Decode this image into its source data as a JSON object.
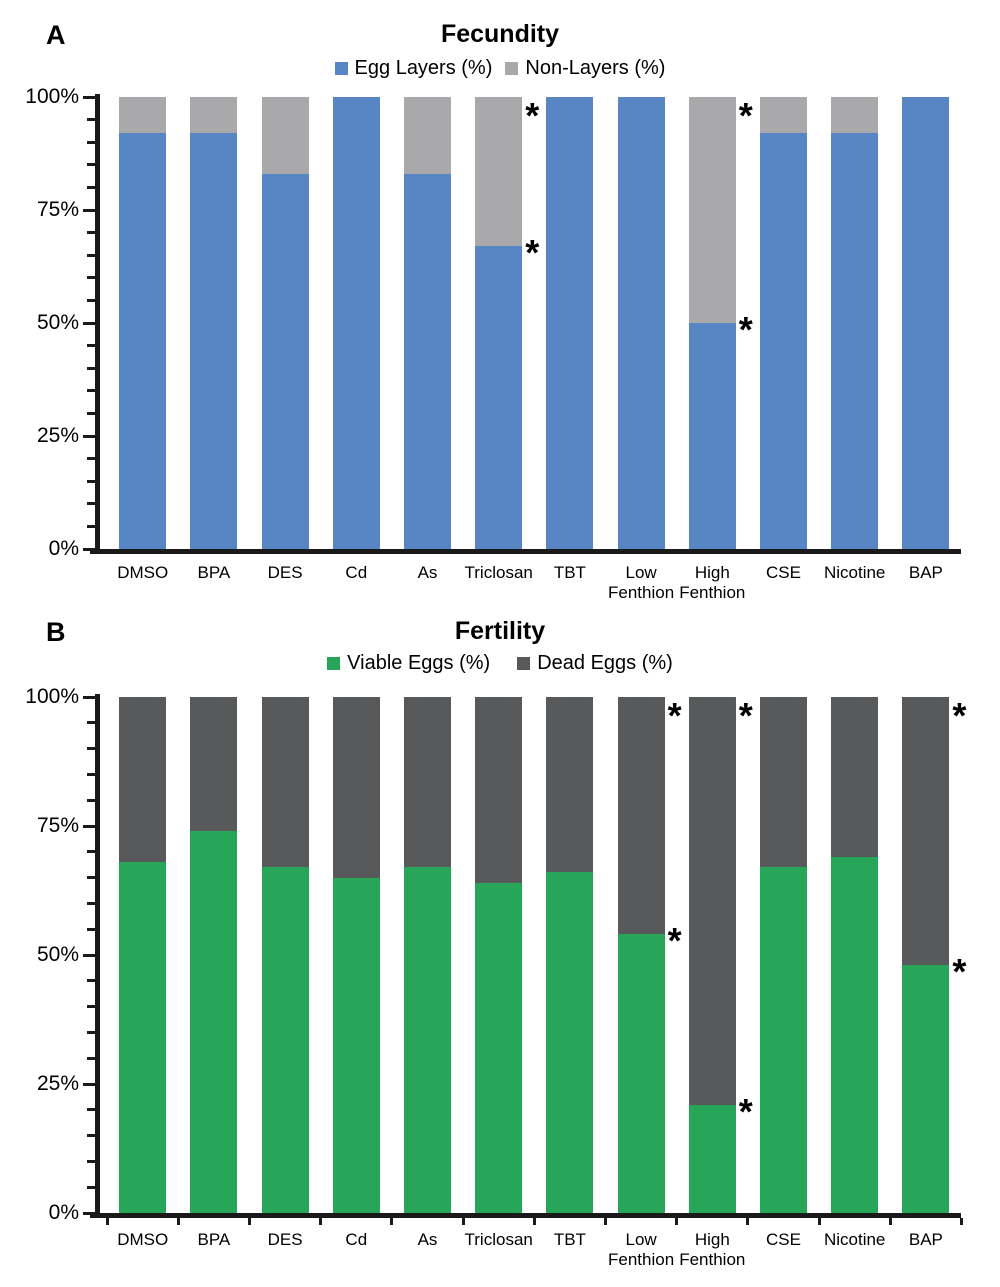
{
  "panels": [
    {
      "panel_label": "A",
      "title": "Fecundity"
    },
    {
      "panel_label": "B",
      "title": "Fertility"
    }
  ],
  "chart_data": [
    {
      "type": "bar",
      "stacked": true,
      "panel": "A",
      "title": "Fecundity",
      "categories": [
        "DMSO",
        "BPA",
        "DES",
        "Cd",
        "As",
        "Triclosan",
        "TBT",
        "Low Fenthion",
        "High Fenthion",
        "CSE",
        "Nicotine",
        "BAP"
      ],
      "series": [
        {
          "name": "Egg Layers (%)",
          "color": "#5886C4",
          "values": [
            92,
            92,
            83,
            100,
            83,
            67,
            100,
            100,
            50,
            92,
            92,
            100
          ]
        },
        {
          "name": "Non-Layers (%)",
          "color": "#A9A9AC",
          "values": [
            8,
            8,
            17,
            0,
            17,
            33,
            0,
            0,
            50,
            8,
            8,
            0
          ]
        }
      ],
      "ylim": [
        0,
        100
      ],
      "y_tick_labels": [
        "0%",
        "25%",
        "50%",
        "75%",
        "100%"
      ],
      "y_minor_tick_interval": 5,
      "grid": "dashed",
      "gridline_color": "#8E8E92",
      "legend_position": "top",
      "x_boundary_ticks": false,
      "annotations": [
        {
          "category": "Triclosan",
          "marker": "*",
          "at_percent": [
            100,
            67
          ]
        },
        {
          "category": "High Fenthion",
          "marker": "*",
          "at_percent": [
            100,
            50
          ]
        }
      ]
    },
    {
      "type": "bar",
      "stacked": true,
      "panel": "B",
      "title": "Fertility",
      "categories": [
        "DMSO",
        "BPA",
        "DES",
        "Cd",
        "As",
        "Triclosan",
        "TBT",
        "Low Fenthion",
        "High Fenthion",
        "CSE",
        "Nicotine",
        "BAP"
      ],
      "series": [
        {
          "name": "Viable Eggs (%)",
          "color": "#27A65A",
          "values": [
            68,
            74,
            67,
            65,
            67,
            64,
            66,
            54,
            21,
            67,
            69,
            48
          ]
        },
        {
          "name": "Dead Eggs (%)",
          "color": "#58595B",
          "values": [
            32,
            26,
            33,
            35,
            33,
            36,
            34,
            46,
            79,
            33,
            31,
            52
          ]
        }
      ],
      "ylim": [
        0,
        100
      ],
      "y_tick_labels": [
        "0%",
        "25%",
        "50%",
        "75%",
        "100%"
      ],
      "y_minor_tick_interval": 5,
      "grid": "dashed",
      "gridline_color": "#1C1C1C",
      "legend_position": "top",
      "x_boundary_ticks": true,
      "annotations": [
        {
          "category": "Low Fenthion",
          "marker": "*",
          "at_percent": [
            100,
            54
          ]
        },
        {
          "category": "High Fenthion",
          "marker": "*",
          "at_percent": [
            100,
            21
          ]
        },
        {
          "category": "BAP",
          "marker": "*",
          "at_percent": [
            100,
            48
          ]
        }
      ]
    }
  ]
}
